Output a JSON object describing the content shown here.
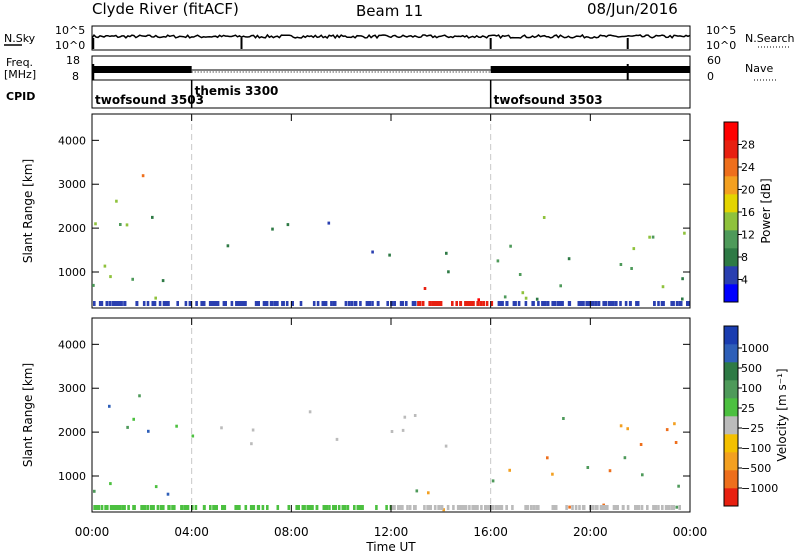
{
  "header": {
    "station": "Clyde River (fitACF)",
    "beam": "Beam 11",
    "date": "08/Jun/2016"
  },
  "noise_panel": {
    "left_label": "N.Sky",
    "right_label": "N.Search",
    "top_tick": "10^5",
    "bottom_tick": "10^0"
  },
  "freq_panel": {
    "left_label_1": "Freq.",
    "left_label_2": "[MHz]",
    "right_label": "Nave",
    "left_top_tick": "18",
    "left_bottom_tick": "8",
    "right_top_tick": "60",
    "right_bottom_tick": "0"
  },
  "cpid_panel": {
    "label": "CPID",
    "programs": [
      {
        "name": "twofsound 3503",
        "start_hour": 0,
        "end_hour": 4
      },
      {
        "name": "themis 3300",
        "start_hour": 4,
        "end_hour": 16
      },
      {
        "name": "twofsound 3503",
        "start_hour": 16,
        "end_hour": 24
      }
    ]
  },
  "chart_data": [
    {
      "type": "heatmap",
      "panel": "power",
      "ylabel": "Slant Range [km]",
      "ylim": [
        180,
        4600
      ],
      "yticks": [
        "1000",
        "2000",
        "3000",
        "4000"
      ],
      "xlim": [
        0,
        24
      ],
      "colorbar": {
        "label": "Power [dB]",
        "ticks": [
          "4",
          "8",
          "12",
          "16",
          "20",
          "24",
          "28"
        ],
        "tick_values": [
          4,
          8,
          12,
          16,
          20,
          24,
          28
        ],
        "range": [
          0,
          32
        ],
        "colors": [
          "#0000ff",
          "#2a3fb0",
          "#2e7a45",
          "#4e9a5a",
          "#8fc23c",
          "#e4d400",
          "#f3a020",
          "#ee6f1c",
          "#e82010",
          "#ff0000"
        ]
      },
      "scatter_regions": [
        {
          "t0": 0.0,
          "t1": 4.0,
          "r0": 400,
          "r1": 2900,
          "values": [
            8,
            12,
            16
          ]
        },
        {
          "t0": 1.5,
          "t1": 3.0,
          "r0": 2800,
          "r1": 3400,
          "values": [
            16,
            20,
            24
          ]
        },
        {
          "t0": 5.0,
          "t1": 9.0,
          "r0": 1600,
          "r1": 2300,
          "values": [
            4,
            8
          ]
        },
        {
          "t0": 9.0,
          "t1": 11.0,
          "r0": 1800,
          "r1": 2400,
          "values": [
            4,
            8
          ]
        },
        {
          "t0": 11.0,
          "t1": 15.0,
          "r0": 800,
          "r1": 1800,
          "values": [
            4,
            8
          ]
        },
        {
          "t0": 13.0,
          "t1": 16.0,
          "r0": 180,
          "r1": 700,
          "values": [
            24,
            28,
            32
          ]
        },
        {
          "t0": 16.0,
          "t1": 24.0,
          "r0": 300,
          "r1": 2400,
          "values": [
            8,
            12,
            16
          ]
        }
      ]
    },
    {
      "type": "heatmap",
      "panel": "velocity",
      "ylabel": "Slant Range [km]",
      "ylim": [
        180,
        4600
      ],
      "yticks": [
        "1000",
        "2000",
        "3000",
        "4000"
      ],
      "xlim": [
        0,
        24
      ],
      "colorbar": {
        "label": "Velocity [m s⁻¹]",
        "ticks": [
          "1000",
          "500",
          "100",
          "25",
          "−25",
          "−100",
          "−500",
          "−1000"
        ],
        "colors": [
          "#1a3db0",
          "#2e5fb8",
          "#2e7a45",
          "#4e9a5a",
          "#4cc040",
          "#bbbbbb",
          "#f4c000",
          "#f3a020",
          "#ee6f1c",
          "#e82010"
        ]
      },
      "scatter_regions": [
        {
          "t0": 0.0,
          "t1": 4.0,
          "r0": 400,
          "r1": 2900,
          "values": [
            500,
            100,
            25
          ]
        },
        {
          "t0": 5.0,
          "t1": 16.0,
          "r0": 1700,
          "r1": 2500,
          "values": [
            0
          ]
        },
        {
          "t0": 12.0,
          "t1": 16.0,
          "r0": 180,
          "r1": 900,
          "values": [
            -100,
            -500,
            100
          ]
        },
        {
          "t0": 16.0,
          "t1": 24.0,
          "r0": 300,
          "r1": 2400,
          "values": [
            -100,
            -500,
            100
          ]
        }
      ]
    }
  ],
  "time_axis": {
    "label": "Time UT",
    "ticks": [
      "00:00",
      "04:00",
      "08:00",
      "12:00",
      "16:00",
      "20:00",
      "00:00"
    ]
  }
}
